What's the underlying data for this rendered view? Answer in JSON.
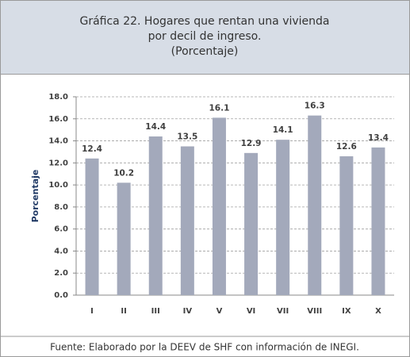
{
  "chart_data": {
    "type": "bar",
    "title": [
      "Gráfica 22. Hogares que rentan una vivienda",
      "por decil de ingreso.",
      "(Porcentaje)"
    ],
    "y_label": "Porcentaje",
    "categories": [
      "I",
      "II",
      "III",
      "IV",
      "V",
      "VI",
      "VII",
      "VIII",
      "IX",
      "X"
    ],
    "values": [
      12.4,
      10.2,
      14.4,
      13.5,
      16.1,
      12.9,
      14.1,
      16.3,
      12.6,
      13.4
    ],
    "color": "#a3a9bb",
    "ylim": [
      0,
      18
    ],
    "yticks": [
      {
        "value": 0,
        "label": "0.0"
      },
      {
        "value": 2,
        "label": "2.0"
      },
      {
        "value": 4,
        "label": "4.0"
      },
      {
        "value": 6,
        "label": "6.0"
      },
      {
        "value": 8,
        "label": "8.0"
      },
      {
        "value": 10,
        "label": "10.0"
      },
      {
        "value": 12,
        "label": "12.0"
      },
      {
        "value": 14,
        "label": "14.0"
      },
      {
        "value": 16,
        "label": "16.0"
      },
      {
        "value": 18,
        "label": "18.0"
      }
    ],
    "grid": true,
    "source": "Fuente: Elaborado por la DEEV de SHF con información de INEGI."
  }
}
